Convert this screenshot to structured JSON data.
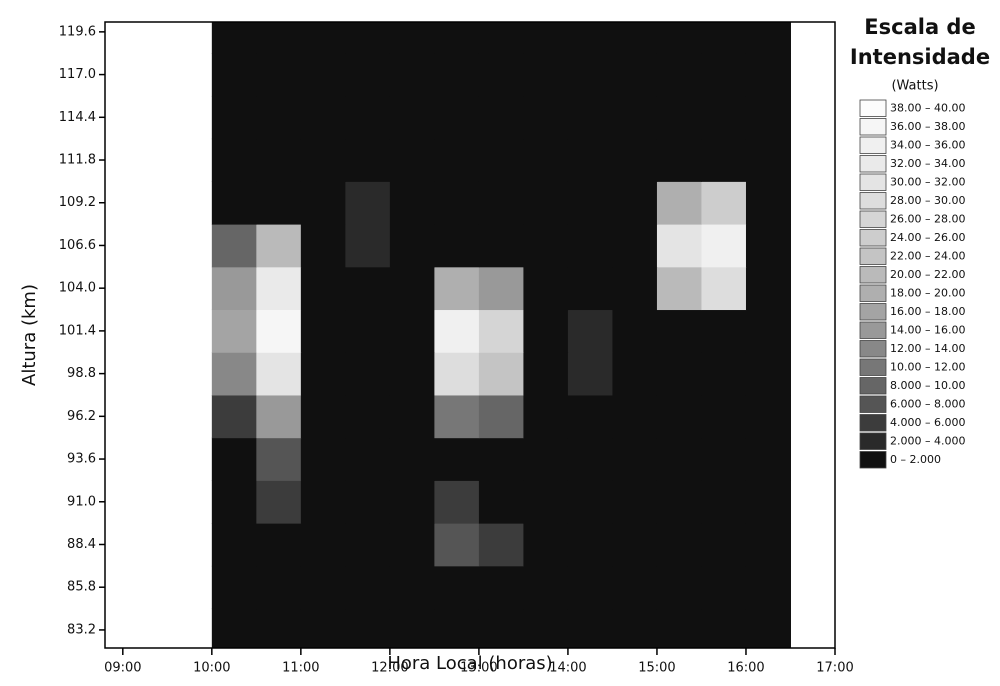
{
  "chart_data": {
    "type": "heatmap",
    "xlabel": "Hora Local (horas)",
    "ylabel": "Altura (km)",
    "xlim": [
      8.8,
      17.0
    ],
    "ylim": [
      82.1,
      120.2
    ],
    "xticks": [
      {
        "value": 9,
        "label": "09:00"
      },
      {
        "value": 10,
        "label": "10:00"
      },
      {
        "value": 11,
        "label": "11:00"
      },
      {
        "value": 12,
        "label": "12:00"
      },
      {
        "value": 13,
        "label": "13:00"
      },
      {
        "value": 14,
        "label": "14:00"
      },
      {
        "value": 15,
        "label": "15:00"
      },
      {
        "value": 16,
        "label": "16:00"
      },
      {
        "value": 17,
        "label": "17:00"
      }
    ],
    "yticks": [
      83.2,
      85.8,
      88.4,
      {
        "value": 91,
        "label": "91.0"
      },
      93.6,
      96.2,
      98.8,
      101.4,
      {
        "value": 104,
        "label": "104.0"
      },
      106.6,
      109.2,
      111.8,
      114.4,
      {
        "value": 117,
        "label": "117.0"
      },
      119.6
    ],
    "x": [
      10.25,
      10.75,
      11.25,
      11.75,
      12.25,
      12.75,
      13.25,
      13.75,
      14.25,
      14.75,
      15.25,
      15.75,
      16.25
    ],
    "y": [
      83.2,
      85.8,
      88.4,
      91.0,
      93.6,
      96.2,
      98.8,
      101.4,
      104.0,
      106.6,
      109.2,
      111.8,
      114.4,
      117.0,
      119.6
    ],
    "z": [
      [
        1,
        1,
        1,
        1,
        1,
        1,
        1,
        1,
        1,
        1,
        1,
        1,
        1
      ],
      [
        1,
        1,
        1,
        1,
        1,
        1,
        1,
        1,
        1,
        1,
        1,
        1,
        1
      ],
      [
        1,
        1,
        1,
        1,
        1,
        6,
        5,
        1,
        1,
        1,
        1,
        1,
        1
      ],
      [
        1,
        5,
        1,
        1,
        1,
        4,
        1,
        1,
        1,
        1,
        1,
        1,
        1
      ],
      [
        1,
        6,
        1,
        1,
        1,
        1,
        1,
        1,
        1,
        1,
        1,
        1,
        1
      ],
      [
        4,
        14,
        1,
        1,
        1,
        10,
        8,
        1,
        1,
        1,
        1,
        1,
        1
      ],
      [
        12,
        30,
        1,
        1,
        1,
        28,
        22,
        1,
        3,
        1,
        1,
        1,
        1
      ],
      [
        16,
        36,
        1,
        1,
        1,
        34,
        26,
        1,
        3,
        1,
        1,
        1,
        1
      ],
      [
        14,
        32,
        1,
        1,
        1,
        18,
        14,
        1,
        1,
        1,
        20,
        28,
        1
      ],
      [
        8,
        20,
        1,
        3,
        1,
        1,
        1,
        1,
        1,
        1,
        30,
        34,
        1
      ],
      [
        1,
        1,
        1,
        3,
        1,
        1,
        1,
        1,
        1,
        1,
        18,
        24,
        1
      ],
      [
        1,
        1,
        1,
        1,
        1,
        1,
        1,
        1,
        1,
        1,
        1,
        1,
        1
      ],
      [
        1,
        1,
        1,
        1,
        1,
        1,
        1,
        1,
        1,
        1,
        1,
        1,
        1
      ],
      [
        1,
        1,
        1,
        1,
        1,
        1,
        1,
        1,
        1,
        1,
        1,
        1,
        1
      ],
      [
        1,
        1,
        1,
        1,
        1,
        1,
        1,
        1,
        1,
        1,
        1,
        1,
        1
      ]
    ],
    "legend_title": [
      "Escala de",
      "Intensidade"
    ],
    "legend_unit": "(Watts)",
    "levels": [
      0,
      2,
      4,
      6,
      8,
      10,
      12,
      14,
      16,
      18,
      20,
      22,
      24,
      26,
      28,
      30,
      32,
      34,
      36,
      38,
      40
    ],
    "legend_labels": [
      "0 – 2.000",
      "2.000 – 4.000",
      "4.000 – 6.000",
      "6.000 – 8.000",
      "8.000 – 10.00",
      "10.00 – 12.00",
      "12.00 – 14.00",
      "14.00 – 16.00",
      "16.00 – 18.00",
      "18.00 – 20.00",
      "20.00 – 22.00",
      "22.00 – 24.00",
      "24.00 – 26.00",
      "26.00 – 28.00",
      "28.00 – 30.00",
      "30.00 – 32.00",
      "32.00 – 34.00",
      "34.00 – 36.00",
      "36.00 – 38.00",
      "38.00 – 40.00"
    ],
    "colors": [
      "#101010",
      "#2a2a2a",
      "#3c3c3c",
      "#555555",
      "#666666",
      "#777777",
      "#888888",
      "#999999",
      "#a4a4a4",
      "#afafaf",
      "#bababa",
      "#c4c4c4",
      "#cdcdcd",
      "#d5d5d5",
      "#dddddd",
      "#e4e4e4",
      "#eaeaea",
      "#f0f0f0",
      "#f6f6f6",
      "#fcfcfc"
    ]
  }
}
